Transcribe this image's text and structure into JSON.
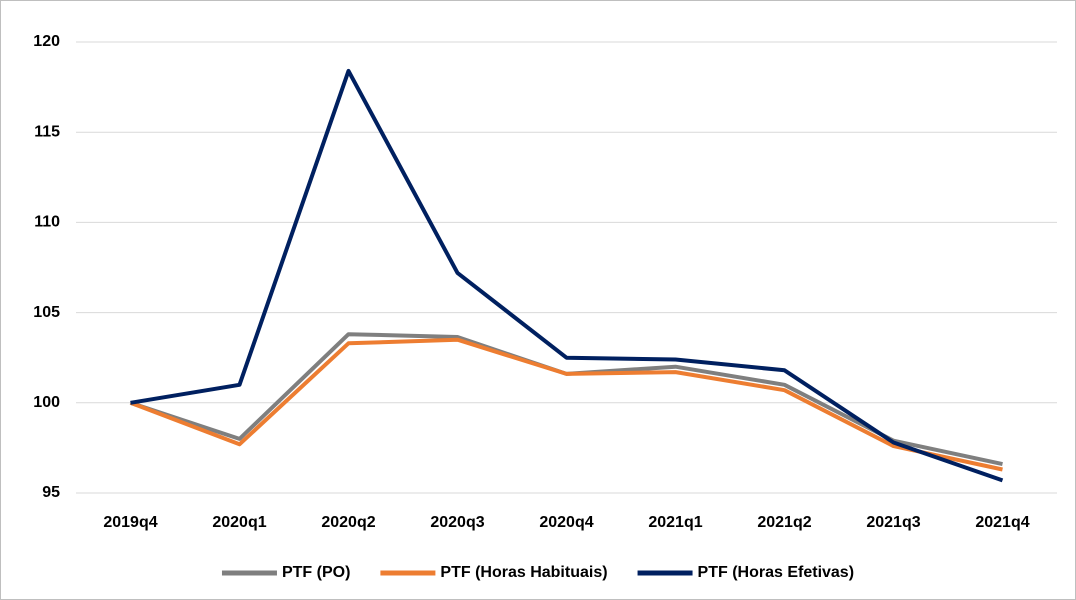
{
  "chart_data": {
    "type": "line",
    "categories": [
      "2019q4",
      "2020q1",
      "2020q2",
      "2020q3",
      "2020q4",
      "2021q1",
      "2021q2",
      "2021q3",
      "2021q4"
    ],
    "series": [
      {
        "name": "PTF (PO)",
        "color": "#7f7f7f",
        "values": [
          100,
          98.0,
          103.8,
          103.65,
          101.6,
          102.0,
          101.0,
          97.9,
          96.6
        ]
      },
      {
        "name": "PTF (Horas Habituais)",
        "color": "#ed7d31",
        "values": [
          100,
          97.7,
          103.3,
          103.5,
          101.6,
          101.7,
          100.7,
          97.6,
          96.3
        ]
      },
      {
        "name": "PTF (Horas Efetivas)",
        "color": "#002060",
        "values": [
          100,
          101.0,
          118.4,
          107.2,
          102.5,
          102.4,
          101.8,
          97.8,
          95.7
        ]
      }
    ],
    "ylim": [
      95,
      120
    ],
    "yticks": [
      95,
      100,
      105,
      110,
      115,
      120
    ],
    "grid": true,
    "legend": "bottom"
  }
}
